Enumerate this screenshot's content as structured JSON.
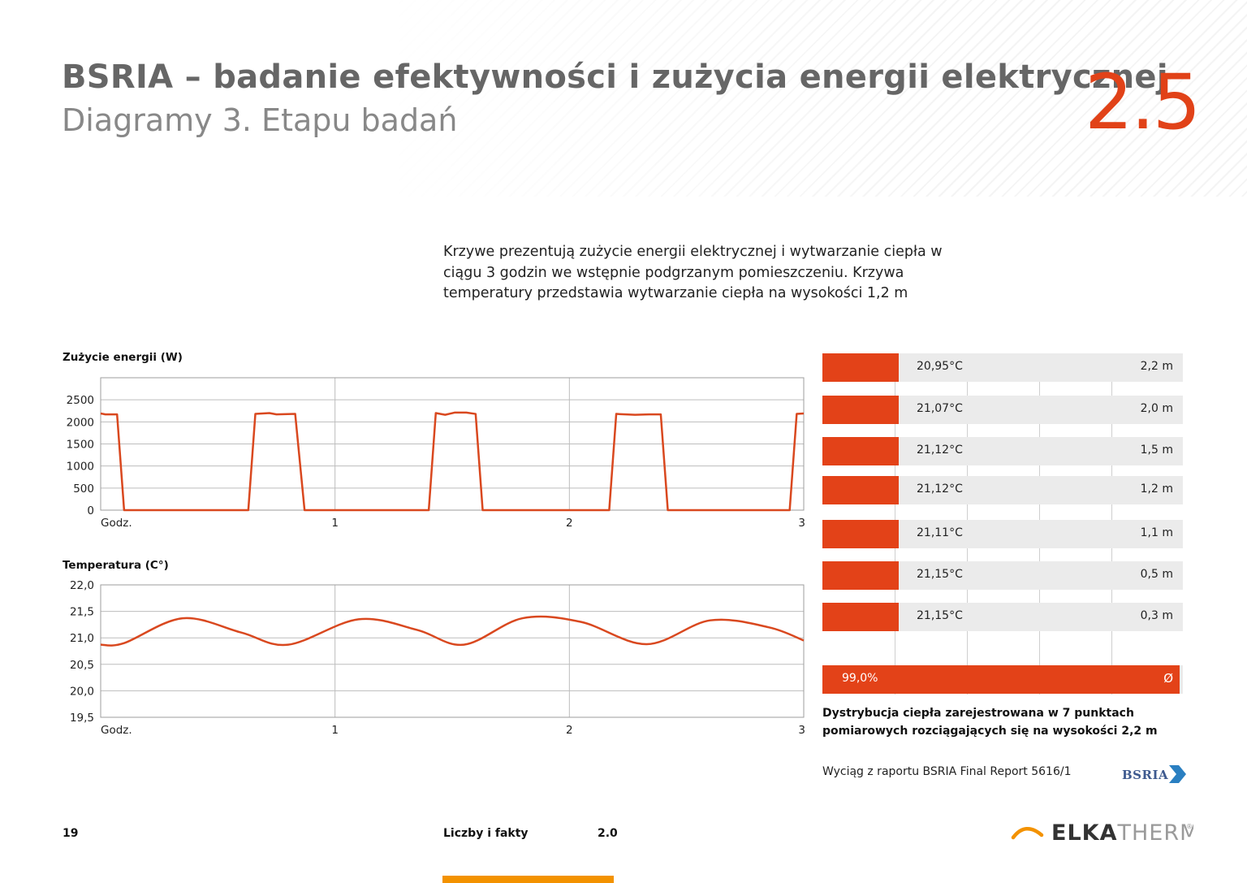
{
  "header": {
    "title": "BSRIA – badanie efektywności  i zużycia energii elektrycznej",
    "subtitle": "Diagramy 3. Etapu badań",
    "section_number": "2.5"
  },
  "intro_text": "Krzywe prezentują zużycie energii elektrycznej i wytwarzanie ciepła w ciągu 3 godzin we wstępnie podgrzanym pomieszczeniu. Krzywa temperatury przedstawia wytwarzanie ciepła na wysokości 1,2 m",
  "colors": {
    "accent": "#e14218",
    "bar": "#e34218",
    "line": "#d9481f",
    "title_gray": "#666666",
    "footer_accent": "#f39200"
  },
  "chart_data": [
    {
      "type": "line",
      "title": "Zużycie energii (W)",
      "xlabel": "Godz.",
      "x_ticks": [
        "Godz.",
        "1",
        "2",
        "3"
      ],
      "xlim": [
        0,
        3
      ],
      "y_ticks": [
        "2500",
        "2000",
        "1500",
        "1000",
        "500",
        "0"
      ],
      "y_tick_values": [
        2500,
        2000,
        1500,
        1000,
        500,
        0
      ],
      "ylim": [
        0,
        3000
      ],
      "grid": true,
      "series": [
        {
          "x": [
            0,
            0.02,
            0.07,
            0.1,
            0.63,
            0.66,
            0.72,
            0.75,
            0.83,
            0.87,
            1.4,
            1.43,
            1.47,
            1.51,
            1.56,
            1.6,
            1.63,
            2.17,
            2.2,
            2.28,
            2.34,
            2.39,
            2.42,
            2.94,
            2.97,
            3.0
          ],
          "y": [
            2190,
            2170,
            2170,
            0,
            0,
            2180,
            2200,
            2170,
            2180,
            0,
            0,
            2200,
            2160,
            2210,
            2210,
            2180,
            0,
            0,
            2180,
            2160,
            2170,
            2170,
            0,
            0,
            2180,
            2190
          ]
        }
      ]
    },
    {
      "type": "line",
      "title": "Temperatura (C°)",
      "xlabel": "Godz.",
      "x_ticks": [
        "Godz.",
        "1",
        "2",
        "3"
      ],
      "xlim": [
        0,
        3
      ],
      "y_ticks": [
        "22,0",
        "21,5",
        "21,0",
        "20,5",
        "20,0",
        "19,5"
      ],
      "y_tick_values": [
        22.0,
        21.5,
        21.0,
        20.5,
        20.0,
        19.5
      ],
      "ylim": [
        19.5,
        22.0
      ],
      "grid": true,
      "series": [
        {
          "x": [
            0,
            0.1,
            0.35,
            0.6,
            0.8,
            1.1,
            1.35,
            1.55,
            1.8,
            2.05,
            2.33,
            2.6,
            2.85,
            3.0
          ],
          "y": [
            20.87,
            20.9,
            21.37,
            21.1,
            20.87,
            21.35,
            21.15,
            20.87,
            21.37,
            21.3,
            20.88,
            21.33,
            21.2,
            20.95
          ]
        }
      ]
    },
    {
      "type": "bar",
      "title": "",
      "orientation": "horizontal",
      "categories": [
        "2,2 m",
        "2,0 m",
        "1,5 m",
        "1,2 m",
        "1,1 m",
        "0,5 m",
        "0,3 m"
      ],
      "value_labels": [
        "20,95°C",
        "21,07°C",
        "21,12°C",
        "21,12°C",
        "21,11°C",
        "21,15°C",
        "21,15°C"
      ],
      "values": [
        20.95,
        21.07,
        21.12,
        21.12,
        21.11,
        21.15,
        21.15
      ],
      "summary": {
        "label": "99,0%",
        "symbol": "Ø",
        "value": 99.0
      },
      "caption": "Dystrybucja ciepła zarejestrowana w 7 punktach pomiarowych rozciągających  się na wysokości 2,2 m"
    }
  ],
  "source_note": "Wyciąg z raportu BSRIA Final Report 5616/1",
  "bsria_logo_text": "BSRIA",
  "footer": {
    "page_number": "19",
    "section": "Liczby i fakty",
    "code": "2.0",
    "brand_bold": "ELKA",
    "brand_light": "THERM",
    "registered_mark": "®"
  }
}
